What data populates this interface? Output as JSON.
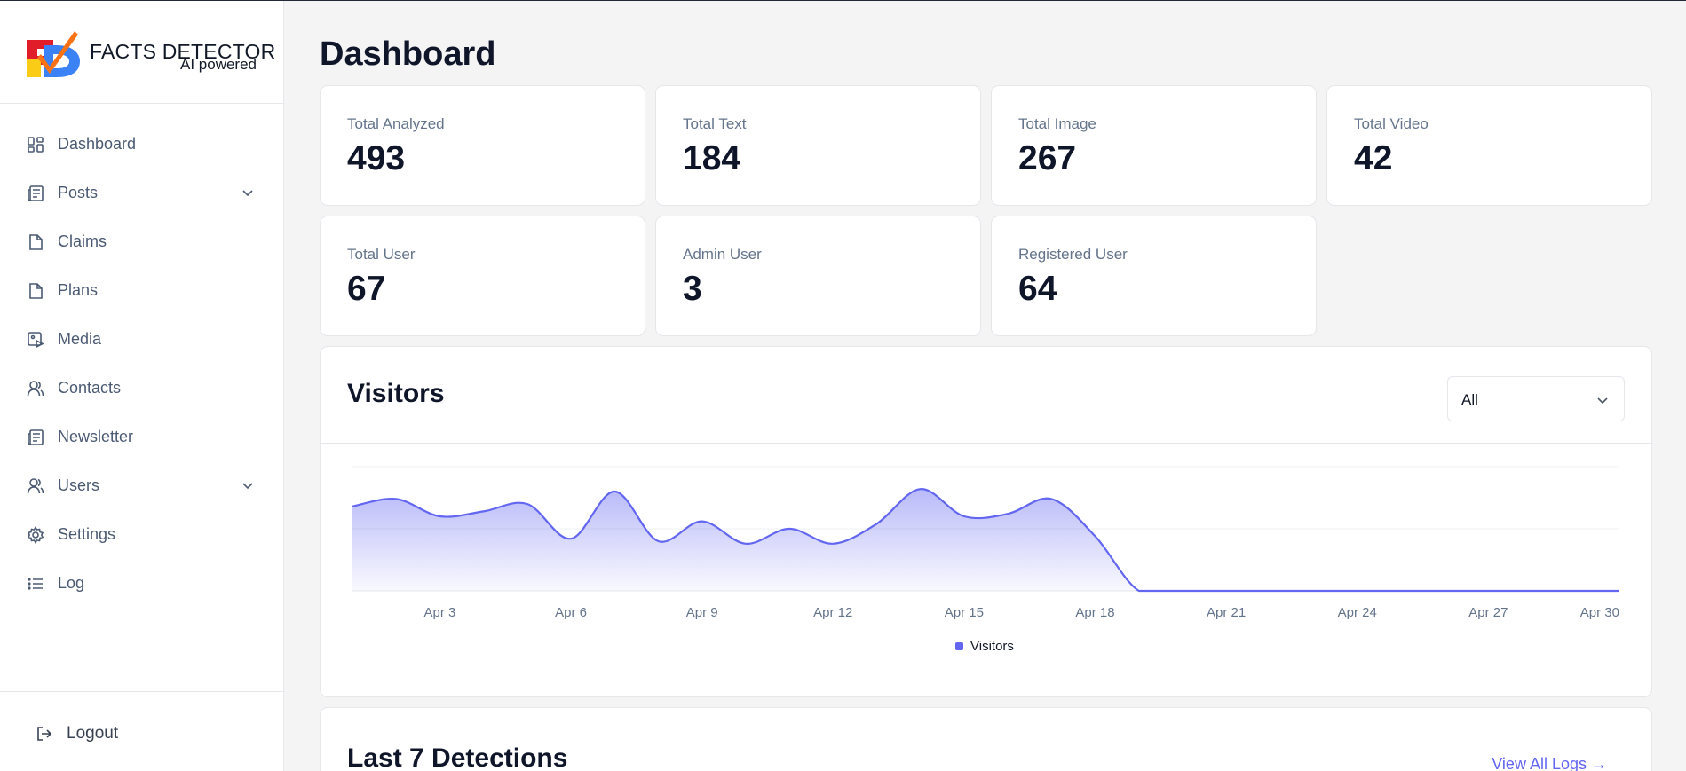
{
  "brand": {
    "name": "FACTS DETECTOR",
    "tagline": "AI powered"
  },
  "sidebar": {
    "items": [
      {
        "label": "Dashboard",
        "icon": "dashboard-icon",
        "has_submenu": false
      },
      {
        "label": "Posts",
        "icon": "posts-icon",
        "has_submenu": true
      },
      {
        "label": "Claims",
        "icon": "file-icon",
        "has_submenu": false
      },
      {
        "label": "Plans",
        "icon": "file-icon",
        "has_submenu": false
      },
      {
        "label": "Media",
        "icon": "media-icon",
        "has_submenu": false
      },
      {
        "label": "Contacts",
        "icon": "contacts-icon",
        "has_submenu": false
      },
      {
        "label": "Newsletter",
        "icon": "newsletter-icon",
        "has_submenu": false
      },
      {
        "label": "Users",
        "icon": "users-icon",
        "has_submenu": true
      },
      {
        "label": "Settings",
        "icon": "gear-icon",
        "has_submenu": false
      },
      {
        "label": "Log",
        "icon": "list-icon",
        "has_submenu": false
      }
    ],
    "logout_label": "Logout"
  },
  "page": {
    "title": "Dashboard"
  },
  "stats": [
    {
      "label": "Total Analyzed",
      "value": "493"
    },
    {
      "label": "Total Text",
      "value": "184"
    },
    {
      "label": "Total Image",
      "value": "267"
    },
    {
      "label": "Total Video",
      "value": "42"
    },
    {
      "label": "Total User",
      "value": "67"
    },
    {
      "label": "Admin User",
      "value": "3"
    },
    {
      "label": "Registered User",
      "value": "64"
    }
  ],
  "visitors": {
    "title": "Visitors",
    "filter_value": "All"
  },
  "detections": {
    "title": "Last 7 Detections",
    "view_all_label": "View All Logs →"
  },
  "chart_data": {
    "type": "area",
    "title": "Visitors",
    "series": [
      {
        "name": "Visitors",
        "color": "#6366f1",
        "x": [
          1,
          2,
          3,
          4,
          5,
          6,
          7,
          8,
          9,
          10,
          11,
          12,
          13,
          14,
          15,
          16,
          17,
          18,
          19,
          20,
          21,
          22,
          23,
          24,
          25,
          26,
          27,
          28,
          29,
          30
        ],
        "values": [
          34,
          37,
          30,
          32,
          35,
          21,
          40,
          20,
          28,
          19,
          25,
          19,
          27,
          41,
          30,
          31,
          37,
          22,
          0,
          0,
          0,
          0,
          0,
          0,
          0,
          0,
          0,
          0,
          0,
          0
        ]
      }
    ],
    "x_ticks": [
      {
        "day": 3,
        "label": "Apr 3"
      },
      {
        "day": 6,
        "label": "Apr 6"
      },
      {
        "day": 9,
        "label": "Apr 9"
      },
      {
        "day": 12,
        "label": "Apr 12"
      },
      {
        "day": 15,
        "label": "Apr 15"
      },
      {
        "day": 18,
        "label": "Apr 18"
      },
      {
        "day": 21,
        "label": "Apr 21"
      },
      {
        "day": 24,
        "label": "Apr 24"
      },
      {
        "day": 27,
        "label": "Apr 27"
      },
      {
        "day": 30,
        "label": "Apr 30"
      }
    ],
    "ylim": [
      0,
      50
    ],
    "gridlines": [
      0,
      25,
      50
    ],
    "legend": "bottom-center",
    "xlabel": "",
    "ylabel": ""
  }
}
